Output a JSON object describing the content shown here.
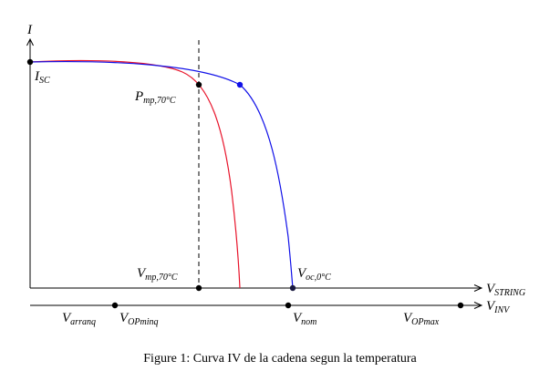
{
  "labels": {
    "y_axis": "I",
    "isc_main": "I",
    "isc_sub": "SC",
    "pmp_main": "P",
    "pmp_sub": "mp,70°C",
    "vmp_main": "V",
    "vmp_sub": "mp,70°C",
    "voc_main": "V",
    "voc_sub": "oc,0°C",
    "vstring_main": "V",
    "vstring_sub": "STRING",
    "vinv_main": "V",
    "vinv_sub": "INV",
    "varranq_main": "V",
    "varranq_sub": "arranq",
    "vopmin_main": "V",
    "vopmin_sub": "OPminq",
    "vnom_main": "V",
    "vnom_sub": "nom",
    "vopmax_main": "V",
    "vopmax_sub": "OPmax"
  },
  "caption": "Figure 1: Curva IV de la cadena segun la temperatura",
  "colors": {
    "curve_hot": "#e8142b",
    "curve_cold": "#1010e8",
    "dot_cold": "#1010e8",
    "axes": "#000000"
  }
}
